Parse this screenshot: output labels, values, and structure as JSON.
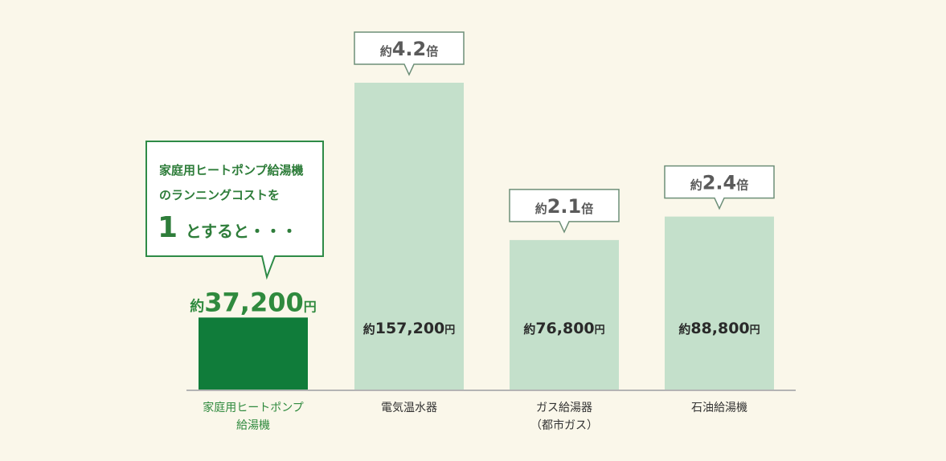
{
  "chart_data": {
    "type": "bar",
    "categories": [
      [
        "家庭用ヒートポンプ",
        "給湯機"
      ],
      [
        "電気温水器"
      ],
      [
        "ガス給湯器",
        "（都市ガス）"
      ],
      [
        "石油給湯機"
      ]
    ],
    "values": [
      37200,
      157200,
      76800,
      88800
    ],
    "value_labels": [
      {
        "prefix": "約",
        "number": "37,200",
        "suffix": "円"
      },
      {
        "prefix": "約",
        "number": "157,200",
        "suffix": "円"
      },
      {
        "prefix": "約",
        "number": "76,800",
        "suffix": "円"
      },
      {
        "prefix": "約",
        "number": "88,800",
        "suffix": "円"
      }
    ],
    "ratios": [
      null,
      {
        "prefix": "約",
        "number": "4.2",
        "suffix": "倍"
      },
      {
        "prefix": "約",
        "number": "2.1",
        "suffix": "倍"
      },
      {
        "prefix": "約",
        "number": "2.4",
        "suffix": "倍"
      }
    ],
    "ylim": [
      0,
      157200
    ],
    "colors": {
      "highlight": "#107c3a",
      "normal": "#c4e0cb",
      "baseline": "#b4b4b4",
      "callout_border": "#2e8b47",
      "highlight_text": "#2f8a3e",
      "background": "#faf7ea"
    }
  },
  "note": {
    "line1": "家庭用ヒートポンプ給湯機",
    "line2": "のランニングコストを",
    "line3_number": "1",
    "line3_text": "とすると・・・"
  }
}
